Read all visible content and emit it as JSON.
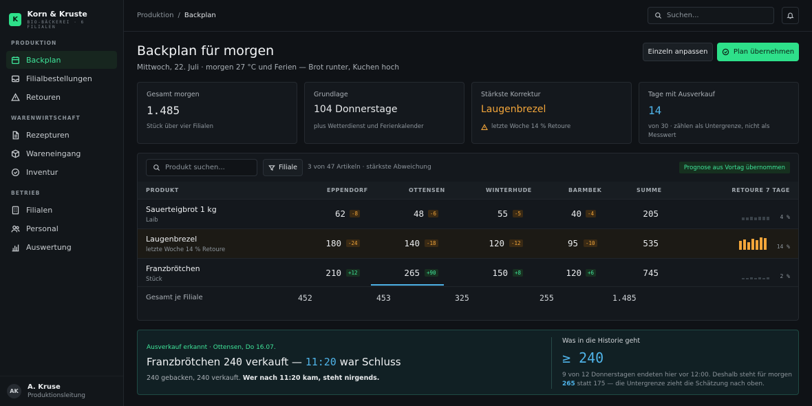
{
  "app": {
    "name": "Korn & Kruste",
    "logo_letter": "K",
    "subtitle": "BIO-BÄCKEREI · 6 FILIALEN",
    "accent": "#2ee08a"
  },
  "sidebar": {
    "sections": [
      {
        "title": "PRODUKTION",
        "items": [
          {
            "label": "Backplan",
            "icon": "calendar-icon",
            "active": true
          },
          {
            "label": "Filialbestellungen",
            "icon": "inbox-icon"
          },
          {
            "label": "Retouren",
            "icon": "alert-triangle-icon"
          }
        ]
      },
      {
        "title": "WARENWIRTSCHAFT",
        "items": [
          {
            "label": "Rezepturen",
            "icon": "file-icon"
          },
          {
            "label": "Wareneingang",
            "icon": "package-icon"
          },
          {
            "label": "Inventur",
            "icon": "check-circle-icon"
          }
        ]
      },
      {
        "title": "BETRIEB",
        "items": [
          {
            "label": "Filialen",
            "icon": "building-icon"
          },
          {
            "label": "Personal",
            "icon": "users-icon"
          },
          {
            "label": "Auswertung",
            "icon": "bar-chart-icon"
          }
        ]
      }
    ],
    "user": {
      "initials": "AK",
      "name": "A. Kruse",
      "role": "Produktionsleitung"
    }
  },
  "topbar": {
    "breadcrumb": [
      "Produktion",
      "Backplan"
    ],
    "separator": "/",
    "search_placeholder": "Suchen..."
  },
  "page": {
    "title": "Backplan für morgen",
    "subtitle": "Mittwoch, 22. Juli · morgen 27 °C und Ferien — Brot runter, Kuchen hoch",
    "btn_adjust": "Einzeln anpassen",
    "btn_take": "Plan übernehmen"
  },
  "cards": [
    {
      "label": "Gesamt morgen",
      "value": "1.485",
      "note": "Stück über vier Filialen"
    },
    {
      "label": "Grundlage",
      "value": "104 Donnerstage",
      "note": "plus Wetterdienst und Ferienkalender"
    },
    {
      "label": "Stärkste Korrektur",
      "value": "Laugenbrezel",
      "note": "letzte Woche 14 % Retoure"
    },
    {
      "label": "Tage mit Ausverkauf",
      "value": "14",
      "note": "von 30 · zählen als Untergrenze, nicht als Messwert"
    }
  ],
  "table": {
    "search_placeholder": "Produkt suchen...",
    "filter_label": "Filiale",
    "info": "3 von 47 Artikeln · stärkste Abweichung",
    "badge": "Prognose aus Vortag übernommen",
    "headers": [
      "PRODUKT",
      "EPPENDORF",
      "OTTENSEN",
      "WINTERHUDE",
      "BARMBEK",
      "SUMME",
      "RETOURE 7 TAGE"
    ],
    "rows": [
      {
        "name": "Sauerteigbrot 1 kg",
        "sub": "Laib",
        "vals": [
          "62",
          "48",
          "55",
          "40"
        ],
        "deltas": [
          "-8",
          "-6",
          "-5",
          "-4"
        ],
        "sum": "205",
        "retoure_pct": "4 %",
        "bars": [
          0.2,
          0.2,
          0.25,
          0.2,
          0.3,
          0.25,
          0.3
        ]
      },
      {
        "name": "Laugenbrezel",
        "sub": "letzte Woche 14 % Retoure",
        "vals": [
          "180",
          "140",
          "120",
          "95"
        ],
        "deltas": [
          "-24",
          "-18",
          "-12",
          "-10"
        ],
        "sum": "535",
        "retoure_pct": "14 %",
        "bars": [
          0.7,
          0.85,
          0.6,
          0.9,
          0.8,
          1.0,
          0.95
        ]
      },
      {
        "name": "Franzbrötchen",
        "sub": "Stück",
        "vals": [
          "210",
          "265",
          "150",
          "120"
        ],
        "deltas": [
          "+12",
          "+90",
          "+8",
          "+6"
        ],
        "sum": "745",
        "retoure_pct": "2 %",
        "bars": [
          0.12,
          0.12,
          0.15,
          0.12,
          0.15,
          0.12,
          0.15
        ]
      }
    ],
    "footer": {
      "label": "Gesamt je Filiale",
      "vals": [
        "452",
        "453",
        "325",
        "255"
      ],
      "total": "1.485"
    }
  },
  "alert": {
    "tag": "Ausverkauf erkannt · Ottensen, Do 16.07.",
    "headline_pre": "Franzbrötchen",
    "headline_num": "240",
    "headline_mid": "verkauft —",
    "headline_time": "11:20",
    "headline_post": "war Schluss",
    "body_pre": "240 gebacken, 240 verkauft.",
    "body_bold": "Wer nach 11:20 kam, steht nirgends.",
    "right_title": "Was in die Historie geht",
    "right_big": "≥ 240",
    "right_text_pre": "9 von 12 Donnerstagen endeten hier vor 12:00. Deshalb steht für morgen",
    "right_text_num": "265",
    "right_text_post": "statt 175 — die Untergrenze zieht die Schätzung nach oben."
  }
}
